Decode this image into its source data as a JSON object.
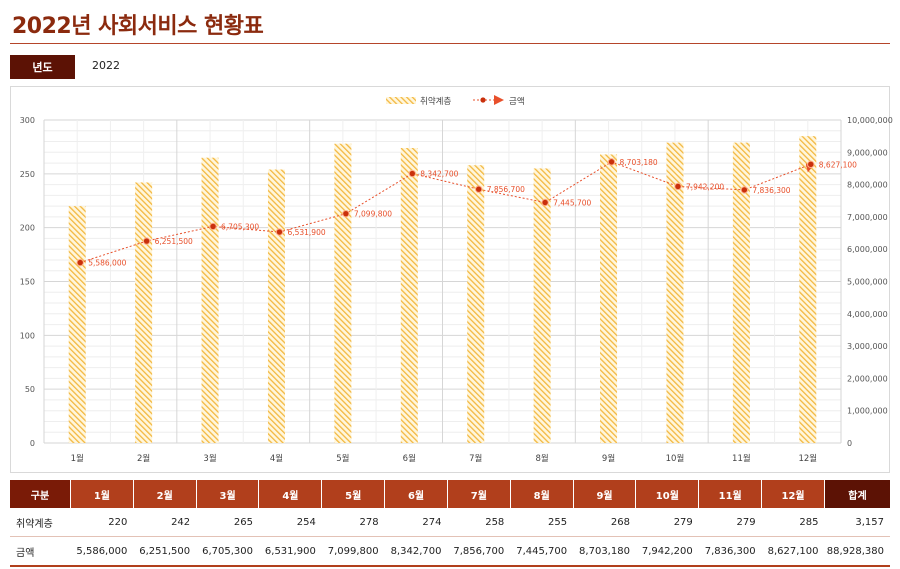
{
  "title": "2022년 사회서비스 현황표",
  "year": {
    "label": "년도",
    "value": "2022"
  },
  "colors": {
    "accent": "#b13f1c",
    "dark": "#5c1205",
    "bar": "#f3b840",
    "line": "#e8502b",
    "marker": "#c9300c"
  },
  "chart_data": {
    "type": "bar",
    "categories": [
      "1월",
      "2월",
      "3월",
      "4월",
      "5월",
      "6월",
      "7월",
      "8월",
      "9월",
      "10월",
      "11월",
      "12월"
    ],
    "series": [
      {
        "name": "취약계층",
        "type": "bar",
        "axis": "left",
        "values": [
          220,
          242,
          265,
          254,
          278,
          274,
          258,
          255,
          268,
          279,
          279,
          285
        ]
      },
      {
        "name": "금액",
        "type": "line",
        "axis": "right",
        "values": [
          5586000,
          6251500,
          6705300,
          6531900,
          7099800,
          8342700,
          7856700,
          7445700,
          8703180,
          7942200,
          7836300,
          8627100
        ],
        "labels": [
          "5,586,000",
          "6,251,500",
          "6,705,300",
          "6,531,900",
          "7,099,800",
          "8,342,700",
          "7,856,700",
          "7,445,700",
          "8,703,180",
          "7,942,200",
          "7,836,300",
          "8,627,100"
        ]
      }
    ],
    "ylim_left": [
      0,
      300
    ],
    "yticks_left": [
      "0",
      "50",
      "100",
      "150",
      "200",
      "250",
      "300"
    ],
    "ylim_right": [
      0,
      10000000
    ],
    "yticks_right": [
      "0",
      "1,000,000",
      "2,000,000",
      "3,000,000",
      "4,000,000",
      "5,000,000",
      "6,000,000",
      "7,000,000",
      "8,000,000",
      "9,000,000",
      "10,000,000"
    ],
    "legend_position": "top-center",
    "grid": true
  },
  "table": {
    "headers": [
      "구분",
      "1월",
      "2월",
      "3월",
      "4월",
      "5월",
      "6월",
      "7월",
      "8월",
      "9월",
      "10월",
      "11월",
      "12월",
      "합계"
    ],
    "rows": [
      {
        "label": "취약계층",
        "cells": [
          "220",
          "242",
          "265",
          "254",
          "278",
          "274",
          "258",
          "255",
          "268",
          "279",
          "279",
          "285",
          "3,157"
        ]
      },
      {
        "label": "금액",
        "cells": [
          "5,586,000",
          "6,251,500",
          "6,705,300",
          "6,531,900",
          "7,099,800",
          "8,342,700",
          "7,856,700",
          "7,445,700",
          "8,703,180",
          "7,942,200",
          "7,836,300",
          "8,627,100",
          "88,928,380"
        ]
      }
    ]
  }
}
